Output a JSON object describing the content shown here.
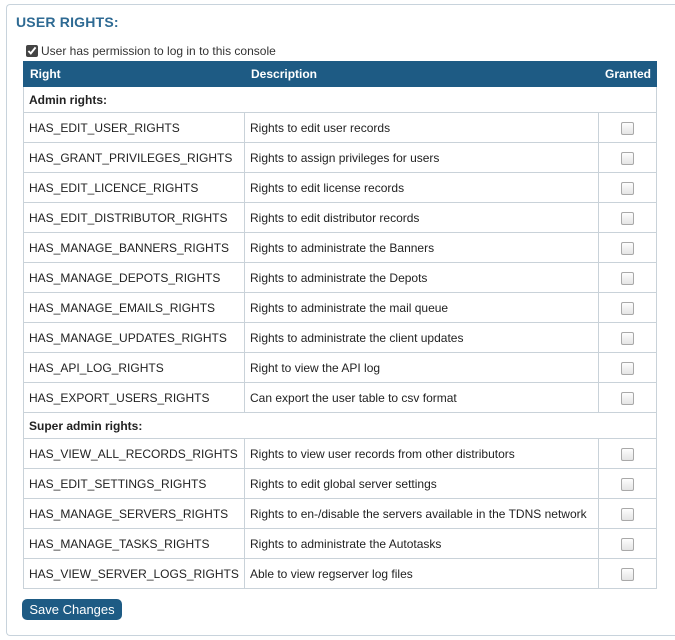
{
  "section": {
    "title": "USER RIGHTS:"
  },
  "console_permission": {
    "label": "User has permission to log in to this console",
    "checked": true
  },
  "table": {
    "headers": {
      "right": "Right",
      "description": "Description",
      "granted": "Granted"
    },
    "groups": [
      {
        "label": "Admin rights:",
        "rows": [
          {
            "right": "HAS_EDIT_USER_RIGHTS",
            "description": "Rights to edit user records",
            "granted": false
          },
          {
            "right": "HAS_GRANT_PRIVILEGES_RIGHTS",
            "description": "Rights to assign privileges for users",
            "granted": false
          },
          {
            "right": "HAS_EDIT_LICENCE_RIGHTS",
            "description": "Rights to edit license records",
            "granted": false
          },
          {
            "right": "HAS_EDIT_DISTRIBUTOR_RIGHTS",
            "description": "Rights to edit distributor records",
            "granted": false
          },
          {
            "right": "HAS_MANAGE_BANNERS_RIGHTS",
            "description": "Rights to administrate the Banners",
            "granted": false
          },
          {
            "right": "HAS_MANAGE_DEPOTS_RIGHTS",
            "description": "Rights to administrate the Depots",
            "granted": false
          },
          {
            "right": "HAS_MANAGE_EMAILS_RIGHTS",
            "description": "Rights to administrate the mail queue",
            "granted": false
          },
          {
            "right": "HAS_MANAGE_UPDATES_RIGHTS",
            "description": "Rights to administrate the client updates",
            "granted": false
          },
          {
            "right": "HAS_API_LOG_RIGHTS",
            "description": "Right to view the API log",
            "granted": false
          },
          {
            "right": "HAS_EXPORT_USERS_RIGHTS",
            "description": "Can export the user table to csv format",
            "granted": false
          }
        ]
      },
      {
        "label": "Super admin rights:",
        "rows": [
          {
            "right": "HAS_VIEW_ALL_RECORDS_RIGHTS",
            "description": "Rights to view user records from other distributors",
            "granted": false
          },
          {
            "right": "HAS_EDIT_SETTINGS_RIGHTS",
            "description": "Rights to edit global server settings",
            "granted": false
          },
          {
            "right": "HAS_MANAGE_SERVERS_RIGHTS",
            "description": "Rights to en-/disable the servers available in the TDNS network",
            "granted": false
          },
          {
            "right": "HAS_MANAGE_TASKS_RIGHTS",
            "description": "Rights to administrate the Autotasks",
            "granted": false
          },
          {
            "right": "HAS_VIEW_SERVER_LOGS_RIGHTS",
            "description": "Able to view regserver log files",
            "granted": false
          }
        ]
      }
    ]
  },
  "actions": {
    "save_label": "Save Changes"
  },
  "colors": {
    "header_bg": "#1e5b84",
    "title": "#2e6a93",
    "border": "#c9d2d9"
  }
}
